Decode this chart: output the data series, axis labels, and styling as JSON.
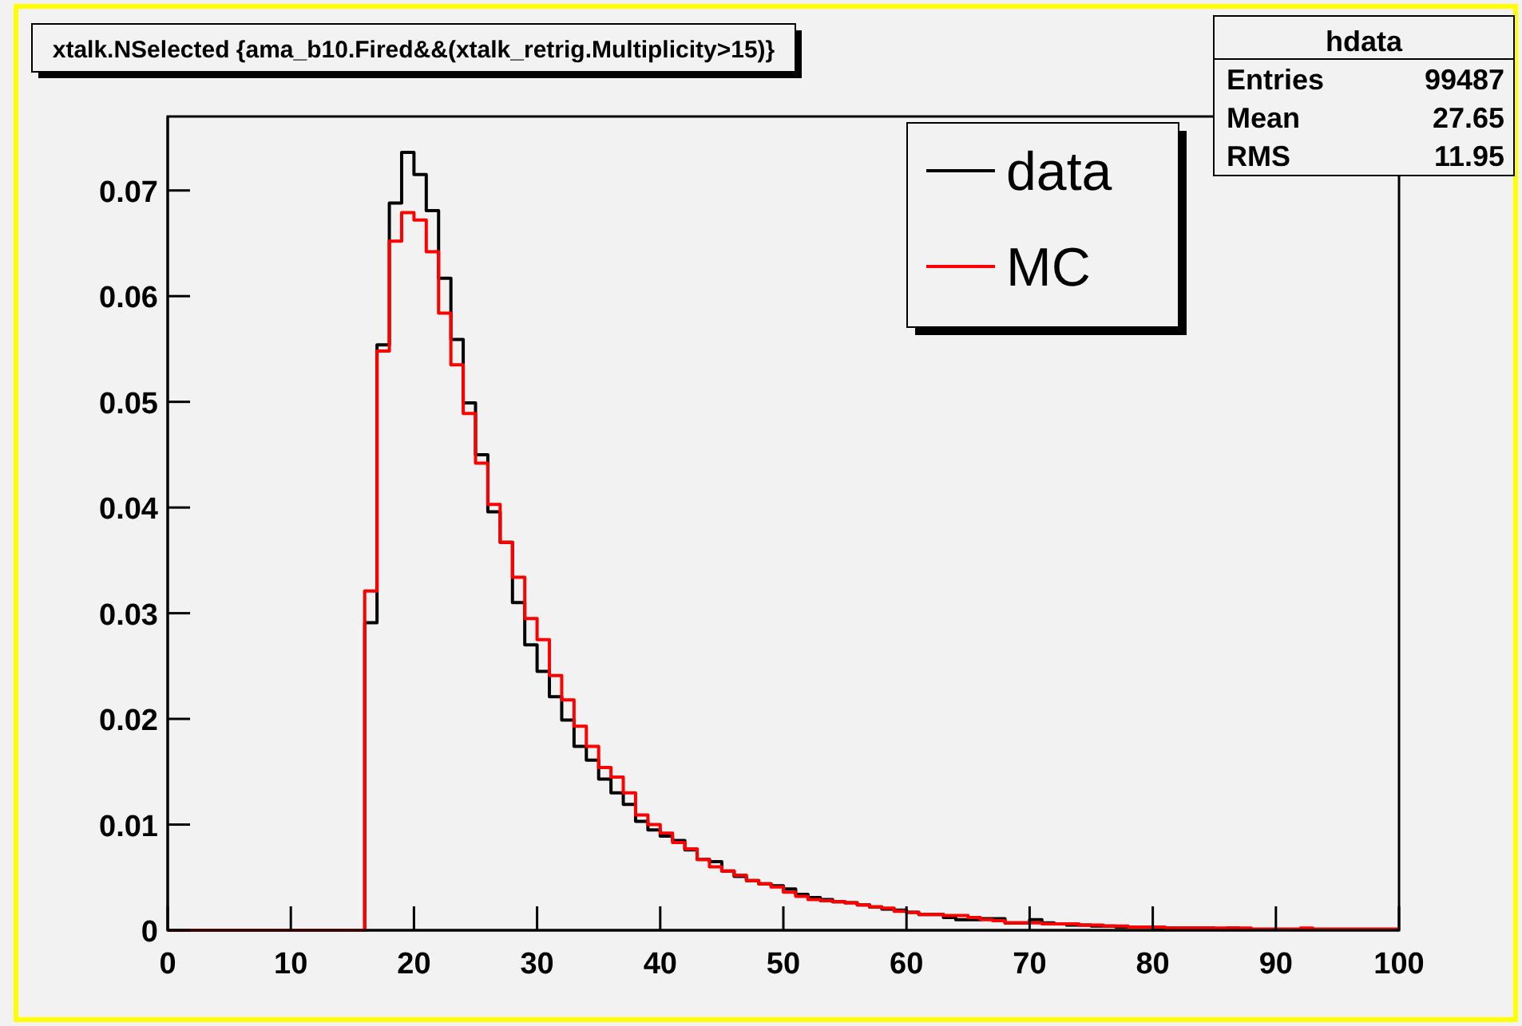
{
  "chart_data": {
    "type": "histogram",
    "title": "xtalk.NSelected {ama_b10.Fired&&(xtalk_retrig.Multiplicity>15)}",
    "bins": [
      0,
      1,
      2,
      3,
      4,
      5,
      6,
      7,
      8,
      9,
      10,
      11,
      12,
      13,
      14,
      15,
      16,
      17,
      18,
      19,
      20,
      21,
      22,
      23,
      24,
      25,
      26,
      27,
      28,
      29,
      30,
      31,
      32,
      33,
      34,
      35,
      36,
      37,
      38,
      39,
      40,
      41,
      42,
      43,
      44,
      45,
      46,
      47,
      48,
      49,
      50,
      51,
      52,
      53,
      54,
      55,
      56,
      57,
      58,
      59,
      60,
      61,
      62,
      63,
      64,
      65,
      66,
      67,
      68,
      69,
      70,
      71,
      72,
      73,
      74,
      75,
      76,
      77,
      78,
      79,
      80,
      81,
      82,
      83,
      84,
      85,
      86,
      87,
      88,
      89,
      90,
      91,
      92,
      93,
      94,
      95,
      96,
      97,
      98,
      99,
      100
    ],
    "series": [
      {
        "name": "data",
        "color": "#000000",
        "values": [
          0,
          0,
          0,
          0,
          0,
          0,
          0,
          0,
          0,
          0,
          0,
          0,
          0,
          0,
          0,
          0,
          0.0291,
          0.0554,
          0.0688,
          0.0736,
          0.0715,
          0.0681,
          0.0617,
          0.0559,
          0.0499,
          0.045,
          0.0396,
          0.0367,
          0.031,
          0.027,
          0.0245,
          0.0221,
          0.0199,
          0.0174,
          0.0161,
          0.0143,
          0.013,
          0.0119,
          0.0103,
          0.0095,
          0.0089,
          0.0085,
          0.0076,
          0.0067,
          0.0065,
          0.0056,
          0.0051,
          0.0047,
          0.0044,
          0.0042,
          0.0039,
          0.0034,
          0.0031,
          0.0029,
          0.0027,
          0.0026,
          0.0024,
          0.0022,
          0.002,
          0.0019,
          0.0017,
          0.0015,
          0.0015,
          0.0012,
          0.001,
          0.001,
          0.0011,
          0.0011,
          0.0007,
          0.0007,
          0.001,
          0.0007,
          0.0006,
          0.0005,
          0.0005,
          0.0004,
          0.0004,
          0.0003,
          0.0003,
          0.0003,
          0.0002,
          0.0002,
          0.0002,
          0.0002,
          0.0002,
          0.0001,
          0.0002,
          0.0001,
          0.0001,
          0.0001,
          0.0001,
          0.0001,
          0.0001,
          0.0001,
          0.0001,
          0.0001,
          0.0001,
          0.0001,
          0.0001,
          0.0001
        ]
      },
      {
        "name": "MC",
        "color": "#ff0000",
        "values": [
          0,
          0,
          0,
          0,
          0,
          0,
          0,
          0,
          0,
          0,
          0,
          0,
          0,
          0,
          0,
          0,
          0.0321,
          0.0548,
          0.0652,
          0.0679,
          0.0672,
          0.0642,
          0.0584,
          0.0535,
          0.0489,
          0.0442,
          0.0403,
          0.0367,
          0.0334,
          0.0295,
          0.0275,
          0.0241,
          0.0218,
          0.0193,
          0.0174,
          0.0154,
          0.0145,
          0.013,
          0.0109,
          0.01,
          0.0092,
          0.0083,
          0.0077,
          0.0067,
          0.006,
          0.0056,
          0.0052,
          0.0047,
          0.0044,
          0.0041,
          0.0036,
          0.0032,
          0.0029,
          0.0028,
          0.0027,
          0.0026,
          0.0024,
          0.0022,
          0.0021,
          0.0018,
          0.0017,
          0.0015,
          0.0015,
          0.0014,
          0.0014,
          0.0012,
          0.001,
          0.0009,
          0.0007,
          0.0007,
          0.0007,
          0.0006,
          0.0006,
          0.0006,
          0.0005,
          0.0005,
          0.0004,
          0.0004,
          0.0003,
          0.0003,
          0.0003,
          0.0002,
          0.0002,
          0.0002,
          0.0002,
          0.0002,
          0.0002,
          0.0002,
          0.0001,
          0.0001,
          0.0001,
          0.0001,
          0.0002,
          0.0001,
          0.0001,
          0.0001,
          0.0001,
          0.0001,
          0.0001,
          0.0001
        ]
      }
    ],
    "xlim": [
      0,
      100
    ],
    "xticks": [
      0,
      10,
      20,
      30,
      40,
      50,
      60,
      70,
      80,
      90,
      100
    ],
    "ylim": [
      0,
      0.077
    ],
    "yticks": [
      0,
      0.01,
      0.02,
      0.03,
      0.04,
      0.05,
      0.06,
      0.07
    ],
    "legend": "top right",
    "annotations": [
      "hdata",
      "Entries 99487",
      "Mean 27.65",
      "RMS 11.95"
    ]
  }
}
